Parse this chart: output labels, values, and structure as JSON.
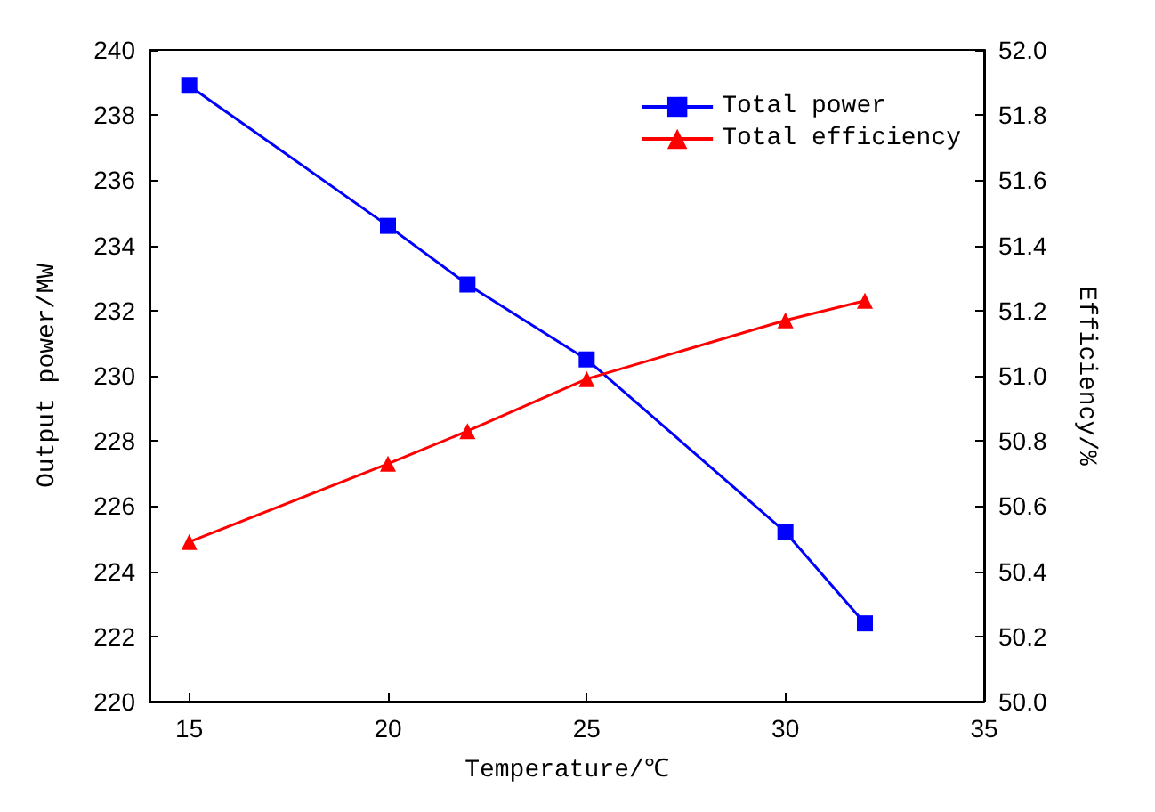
{
  "chart_data": {
    "type": "line",
    "xlabel": "Temperature/℃",
    "ylabel": "Output power/MW",
    "y2label": "Efficiency/%",
    "x": [
      15,
      20,
      22,
      25,
      30,
      32
    ],
    "series": [
      {
        "name": "Total power",
        "color": "#0000ff",
        "values": [
          238.9,
          234.6,
          232.8,
          230.5,
          225.2,
          222.4
        ],
        "marker": "square"
      },
      {
        "name": "Total efficiency",
        "color": "#ff0000",
        "values": [
          50.49,
          50.73,
          50.83,
          50.99,
          51.17,
          51.23
        ],
        "marker": "triangle",
        "axis": "y2"
      }
    ],
    "xlim": [
      14,
      35
    ],
    "xticks": [
      15,
      20,
      25,
      30,
      35
    ],
    "ylim": [
      220,
      240
    ],
    "yticks": [
      220,
      222,
      224,
      226,
      228,
      230,
      232,
      234,
      236,
      238,
      240
    ],
    "y2lim": [
      50,
      52
    ],
    "y2ticks": [
      {
        "value": 50,
        "label": "50.0"
      },
      {
        "value": 50.2,
        "label": "50.2"
      },
      {
        "value": 50.4,
        "label": "50.4"
      },
      {
        "value": 50.6,
        "label": "50.6"
      },
      {
        "value": 50.8,
        "label": "50.8"
      },
      {
        "value": 51,
        "label": "51.0"
      },
      {
        "value": 51.2,
        "label": "51.2"
      },
      {
        "value": 51.4,
        "label": "51.4"
      },
      {
        "value": 51.6,
        "label": "51.6"
      },
      {
        "value": 51.8,
        "label": "51.8"
      },
      {
        "value": 52,
        "label": "52.0"
      }
    ],
    "legend": "top right",
    "grid": false,
    "line_style": "solid"
  }
}
